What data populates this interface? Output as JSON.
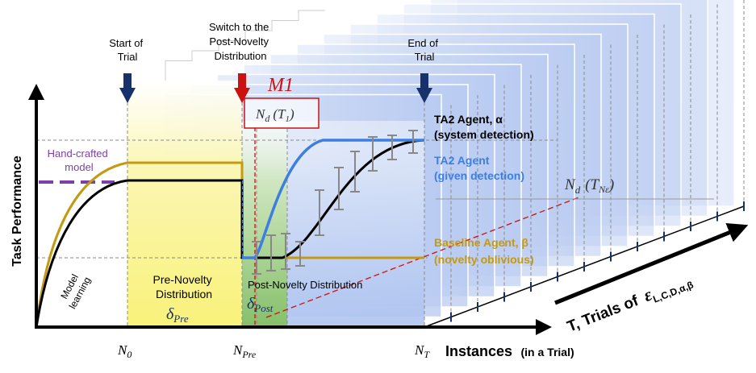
{
  "colors": {
    "ta2_system": "#000000",
    "ta2_given": "#3d7fe0",
    "baseline": "#c49a12",
    "novelty_marker": "#cc1111",
    "trial_marker": "#17326b",
    "handcrafted": "#7e3fa8",
    "pre_region": "#fbf6a8",
    "transition_region": "#9fce8a",
    "post_region": "#c2d3f3"
  },
  "annotations": {
    "start_line1": "Start of",
    "start_line2": "Trial",
    "switch_line1": "Switch to the",
    "switch_line2": "Post-Novelty",
    "switch_line3": "Distribution",
    "end_line1": "End of",
    "end_line2": "Trial",
    "m1": "M1",
    "nd_t1": "N",
    "nd_t1_sub": "d",
    "nd_t1_arg": "(T",
    "nd_t1_arg_sub": "1",
    "nd_t1_close": ")",
    "nd_tn": "N",
    "nd_tn_sub": "d",
    "nd_tn_arg": "(T",
    "nd_tn_arg_sub": "Nε",
    "nd_tn_close": ")",
    "handcrafted_line1": "Hand-crafted",
    "handcrafted_line2": "model",
    "model_learning_line1": "Model",
    "model_learning_line2": "learning",
    "pre_dist_line1": "Pre-Novelty",
    "pre_dist_line2": "Distribution",
    "pre_dist_symbol": "δ",
    "pre_dist_sub": "Pre",
    "post_dist_line1": "Post-Novelty Distribution",
    "post_dist_symbol": "δ",
    "post_dist_sub": "Post"
  },
  "axes": {
    "y_label": "Task Performance",
    "x_label": "Instances",
    "x_label_suffix": "(in a Trial)",
    "x_ticks": [
      {
        "main": "N",
        "sub": "0"
      },
      {
        "main": "N",
        "sub": "Pre"
      },
      {
        "main": "N",
        "sub": "T"
      }
    ]
  },
  "legend": {
    "ta2_system_line1": "TA2 Agent, α",
    "ta2_system_line2": "(system detection)",
    "ta2_given_line1": "TA2 Agent",
    "ta2_given_line2": "(given detection)",
    "baseline_line1": "Baseline Agent, β",
    "baseline_line2": "(novelty oblivious)"
  },
  "trials_axis": {
    "label_prefix": "T, Trials of",
    "symbol": "ε",
    "subscript": "L,C,D,α,β"
  }
}
